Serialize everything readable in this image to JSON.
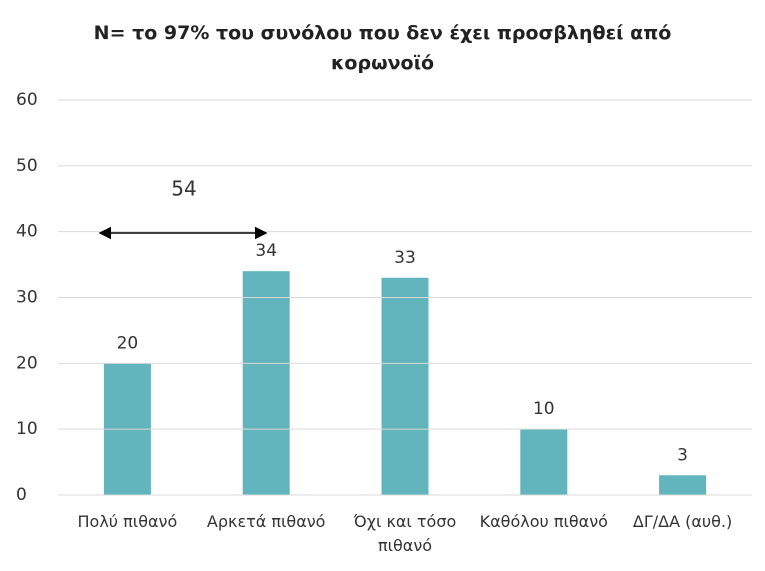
{
  "chart_data": {
    "type": "bar",
    "title": "Ν= το 97% του συνόλου που δεν έχει προσβληθεί από κορωνοϊό",
    "categories": [
      "Πολύ πιθανό",
      "Αρκετά πιθανό",
      "Όχι και τόσο πιθανό",
      "Καθόλου πιθανό",
      "ΔΓ/ΔΑ (αυθ.)"
    ],
    "values": [
      20,
      34,
      33,
      10,
      3
    ],
    "color": "#62b5bd",
    "ylim": [
      0,
      60
    ],
    "yticks": [
      0,
      10,
      20,
      30,
      40,
      50,
      60
    ],
    "grid": true,
    "annotations": [
      {
        "text": "54"
      }
    ]
  }
}
